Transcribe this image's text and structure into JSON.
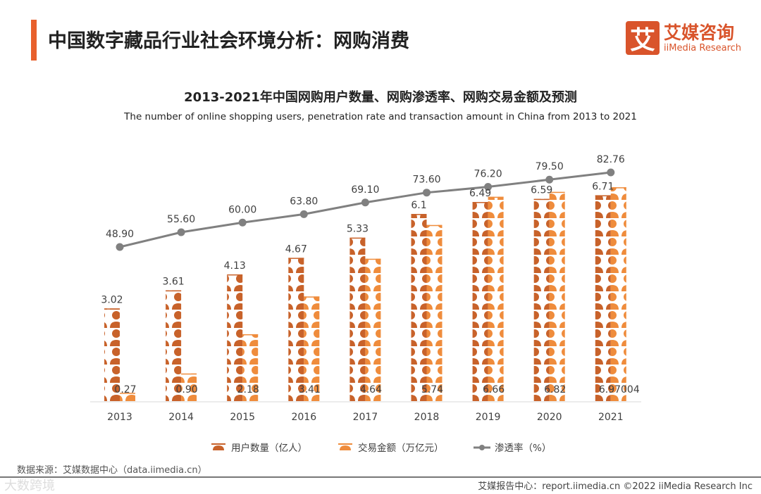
{
  "header": {
    "title": "中国数字藏品行业社会环境分析：网购消费",
    "logo_glyph": "艾",
    "logo_cn": "艾媒咨询",
    "logo_en": "iiMedia Research"
  },
  "chart_data": {
    "type": "bar",
    "title": "2013-2021年中国网购用户数量、网购渗透率、网购交易金额及预测",
    "subtitle": "The number of online shopping users, penetration rate and transaction amount in China from 2013 to 2021",
    "categories": [
      "2013",
      "2014",
      "2015",
      "2016",
      "2017",
      "2018",
      "2019",
      "2020",
      "2021"
    ],
    "series": [
      {
        "name": "用户数量（亿人）",
        "type": "pictograph",
        "color": "#c8622a",
        "values": [
          3.02,
          3.61,
          4.13,
          4.67,
          5.33,
          6.1,
          6.49,
          6.59,
          6.71
        ],
        "labels": [
          "3.02",
          "3.61",
          "4.13",
          "4.67",
          "5.33",
          "6.1",
          "6.49",
          "6.59",
          "6.71"
        ]
      },
      {
        "name": "交易金额（万亿元）",
        "type": "pictograph",
        "color": "#ef8c3c",
        "values": [
          0.27,
          0.9,
          2.18,
          3.41,
          4.64,
          5.74,
          6.66,
          6.82,
          6.97004
        ],
        "labels": [
          "0.27",
          "0.90",
          "2.18",
          "3.41",
          "4.64",
          "5.74",
          "6.66",
          "6.82",
          "6.97004"
        ]
      },
      {
        "name": "渗透率（%）",
        "type": "line",
        "color": "#808080",
        "values": [
          48.9,
          55.6,
          60.0,
          63.8,
          69.1,
          73.6,
          76.2,
          79.5,
          82.76
        ],
        "labels": [
          "48.90",
          "55.60",
          "60.00",
          "63.80",
          "69.10",
          "73.60",
          "76.20",
          "79.50",
          "82.76"
        ]
      }
    ],
    "legend_position": "bottom"
  },
  "footer": {
    "source": "数据来源：艾媒数据中心（data.iimedia.cn）",
    "report": "艾媒报告中心：report.iimedia.cn  ©2022  iiMedia Research  Inc",
    "watermark": "大数跨境"
  }
}
